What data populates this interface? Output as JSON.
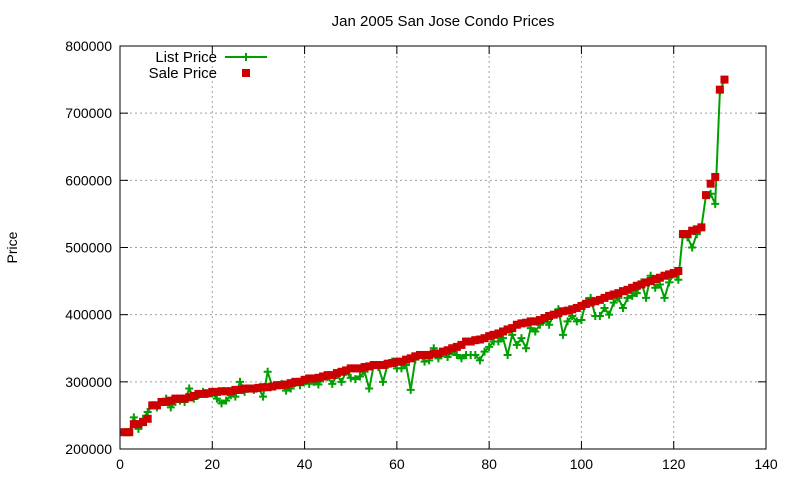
{
  "chart_data": {
    "type": "line",
    "title": "Jan 2005 San Jose Condo Prices",
    "xlabel": "",
    "ylabel": "Price",
    "xlim": [
      0,
      140
    ],
    "ylim": [
      200000,
      800000
    ],
    "x_ticks": [
      0,
      20,
      40,
      60,
      80,
      100,
      120,
      140
    ],
    "y_ticks": [
      200000,
      300000,
      400000,
      500000,
      600000,
      700000,
      800000
    ],
    "grid": true,
    "legend_position": "top-left",
    "series": [
      {
        "name": "List Price",
        "style": "line-plus",
        "color": "#00a000",
        "points": [
          [
            1,
            225000
          ],
          [
            2,
            225000
          ],
          [
            3,
            247000
          ],
          [
            4,
            230000
          ],
          [
            5,
            245000
          ],
          [
            6,
            255000
          ],
          [
            7,
            265000
          ],
          [
            8,
            262000
          ],
          [
            9,
            270000
          ],
          [
            10,
            275000
          ],
          [
            11,
            262000
          ],
          [
            12,
            270000
          ],
          [
            13,
            272000
          ],
          [
            14,
            270000
          ],
          [
            15,
            290000
          ],
          [
            16,
            275000
          ],
          [
            17,
            280000
          ],
          [
            18,
            285000
          ],
          [
            19,
            282000
          ],
          [
            20,
            283000
          ],
          [
            21,
            275000
          ],
          [
            22,
            268000
          ],
          [
            23,
            272000
          ],
          [
            24,
            280000
          ],
          [
            25,
            278000
          ],
          [
            26,
            300000
          ],
          [
            27,
            285000
          ],
          [
            28,
            290000
          ],
          [
            29,
            288000
          ],
          [
            30,
            291000
          ],
          [
            31,
            278000
          ],
          [
            32,
            315000
          ],
          [
            33,
            293000
          ],
          [
            34,
            295000
          ],
          [
            35,
            297000
          ],
          [
            36,
            287000
          ],
          [
            37,
            290000
          ],
          [
            38,
            298000
          ],
          [
            39,
            295000
          ],
          [
            40,
            300000
          ],
          [
            41,
            297000
          ],
          [
            42,
            300000
          ],
          [
            43,
            296000
          ],
          [
            44,
            305000
          ],
          [
            45,
            307000
          ],
          [
            46,
            297000
          ],
          [
            47,
            310000
          ],
          [
            48,
            300000
          ],
          [
            49,
            315000
          ],
          [
            50,
            306000
          ],
          [
            51,
            304000
          ],
          [
            52,
            308000
          ],
          [
            53,
            315000
          ],
          [
            54,
            290000
          ],
          [
            55,
            325000
          ],
          [
            56,
            322000
          ],
          [
            57,
            300000
          ],
          [
            58,
            325000
          ],
          [
            59,
            330000
          ],
          [
            60,
            320000
          ],
          [
            61,
            320000
          ],
          [
            62,
            325000
          ],
          [
            63,
            288000
          ],
          [
            64,
            333000
          ],
          [
            65,
            340000
          ],
          [
            66,
            330000
          ],
          [
            67,
            332000
          ],
          [
            68,
            350000
          ],
          [
            69,
            335000
          ],
          [
            70,
            343000
          ],
          [
            71,
            337000
          ],
          [
            72,
            345000
          ],
          [
            73,
            340000
          ],
          [
            74,
            335000
          ],
          [
            75,
            340000
          ],
          [
            76,
            340000
          ],
          [
            77,
            340000
          ],
          [
            78,
            332000
          ],
          [
            79,
            345000
          ],
          [
            80,
            352000
          ],
          [
            81,
            360000
          ],
          [
            82,
            360000
          ],
          [
            83,
            365000
          ],
          [
            84,
            340000
          ],
          [
            85,
            370000
          ],
          [
            86,
            355000
          ],
          [
            87,
            365000
          ],
          [
            88,
            350000
          ],
          [
            89,
            380000
          ],
          [
            90,
            375000
          ],
          [
            91,
            385000
          ],
          [
            92,
            392000
          ],
          [
            93,
            385000
          ],
          [
            94,
            400000
          ],
          [
            95,
            408000
          ],
          [
            96,
            370000
          ],
          [
            97,
            390000
          ],
          [
            98,
            398000
          ],
          [
            99,
            390000
          ],
          [
            100,
            392000
          ],
          [
            101,
            420000
          ],
          [
            102,
            425000
          ],
          [
            103,
            398000
          ],
          [
            104,
            398000
          ],
          [
            105,
            410000
          ],
          [
            106,
            400000
          ],
          [
            107,
            418000
          ],
          [
            108,
            425000
          ],
          [
            109,
            410000
          ],
          [
            110,
            425000
          ],
          [
            111,
            428000
          ],
          [
            112,
            432000
          ],
          [
            113,
            448000
          ],
          [
            114,
            425000
          ],
          [
            115,
            458000
          ],
          [
            116,
            440000
          ],
          [
            117,
            445000
          ],
          [
            118,
            425000
          ],
          [
            119,
            448000
          ],
          [
            120,
            460000
          ],
          [
            121,
            452000
          ],
          [
            122,
            520000
          ],
          [
            123,
            515000
          ],
          [
            124,
            500000
          ],
          [
            125,
            520000
          ],
          [
            126,
            530000
          ],
          [
            127,
            578000
          ],
          [
            128,
            580000
          ],
          [
            129,
            565000
          ],
          [
            130,
            733000
          ],
          [
            131,
            750000
          ]
        ]
      },
      {
        "name": "Sale Price",
        "style": "square",
        "color": "#cc0000",
        "points": [
          [
            1,
            225000
          ],
          [
            2,
            225000
          ],
          [
            3,
            237000
          ],
          [
            4,
            237000
          ],
          [
            5,
            240000
          ],
          [
            6,
            245000
          ],
          [
            7,
            265000
          ],
          [
            8,
            265000
          ],
          [
            9,
            270000
          ],
          [
            10,
            270000
          ],
          [
            11,
            272000
          ],
          [
            12,
            275000
          ],
          [
            13,
            275000
          ],
          [
            14,
            275000
          ],
          [
            15,
            277000
          ],
          [
            16,
            279000
          ],
          [
            17,
            282000
          ],
          [
            18,
            282000
          ],
          [
            19,
            283000
          ],
          [
            20,
            285000
          ],
          [
            21,
            285000
          ],
          [
            22,
            286000
          ],
          [
            23,
            286000
          ],
          [
            24,
            286000
          ],
          [
            25,
            288000
          ],
          [
            26,
            288000
          ],
          [
            27,
            290000
          ],
          [
            28,
            290000
          ],
          [
            29,
            290000
          ],
          [
            30,
            291000
          ],
          [
            31,
            292000
          ],
          [
            32,
            292000
          ],
          [
            33,
            293000
          ],
          [
            34,
            295000
          ],
          [
            35,
            295000
          ],
          [
            36,
            296000
          ],
          [
            37,
            298000
          ],
          [
            38,
            300000
          ],
          [
            39,
            300000
          ],
          [
            40,
            303000
          ],
          [
            41,
            305000
          ],
          [
            42,
            305000
          ],
          [
            43,
            306000
          ],
          [
            44,
            308000
          ],
          [
            45,
            310000
          ],
          [
            46,
            310000
          ],
          [
            47,
            313000
          ],
          [
            48,
            315000
          ],
          [
            49,
            317000
          ],
          [
            50,
            320000
          ],
          [
            51,
            320000
          ],
          [
            52,
            320000
          ],
          [
            53,
            322000
          ],
          [
            54,
            323000
          ],
          [
            55,
            325000
          ],
          [
            56,
            325000
          ],
          [
            57,
            325000
          ],
          [
            58,
            327000
          ],
          [
            59,
            328000
          ],
          [
            60,
            330000
          ],
          [
            61,
            330000
          ],
          [
            62,
            333000
          ],
          [
            63,
            335000
          ],
          [
            64,
            338000
          ],
          [
            65,
            340000
          ],
          [
            66,
            340000
          ],
          [
            67,
            340000
          ],
          [
            68,
            342000
          ],
          [
            69,
            342000
          ],
          [
            70,
            345000
          ],
          [
            71,
            347000
          ],
          [
            72,
            350000
          ],
          [
            73,
            352000
          ],
          [
            74,
            355000
          ],
          [
            75,
            360000
          ],
          [
            76,
            360000
          ],
          [
            77,
            362000
          ],
          [
            78,
            363000
          ],
          [
            79,
            365000
          ],
          [
            80,
            368000
          ],
          [
            81,
            370000
          ],
          [
            82,
            372000
          ],
          [
            83,
            375000
          ],
          [
            84,
            378000
          ],
          [
            85,
            380000
          ],
          [
            86,
            385000
          ],
          [
            87,
            387000
          ],
          [
            88,
            388000
          ],
          [
            89,
            390000
          ],
          [
            90,
            390000
          ],
          [
            91,
            392000
          ],
          [
            92,
            395000
          ],
          [
            93,
            398000
          ],
          [
            94,
            400000
          ],
          [
            95,
            402000
          ],
          [
            96,
            405000
          ],
          [
            97,
            406000
          ],
          [
            98,
            408000
          ],
          [
            99,
            410000
          ],
          [
            100,
            413000
          ],
          [
            101,
            416000
          ],
          [
            102,
            418000
          ],
          [
            103,
            420000
          ],
          [
            104,
            422000
          ],
          [
            105,
            425000
          ],
          [
            106,
            428000
          ],
          [
            107,
            430000
          ],
          [
            108,
            432000
          ],
          [
            109,
            435000
          ],
          [
            110,
            437000
          ],
          [
            111,
            440000
          ],
          [
            112,
            443000
          ],
          [
            113,
            445000
          ],
          [
            114,
            448000
          ],
          [
            115,
            450000
          ],
          [
            116,
            453000
          ],
          [
            117,
            455000
          ],
          [
            118,
            458000
          ],
          [
            119,
            460000
          ],
          [
            120,
            462000
          ],
          [
            121,
            465000
          ],
          [
            122,
            520000
          ],
          [
            123,
            520000
          ],
          [
            124,
            525000
          ],
          [
            125,
            527000
          ],
          [
            126,
            530000
          ],
          [
            127,
            578000
          ],
          [
            128,
            595000
          ],
          [
            129,
            605000
          ],
          [
            130,
            735000
          ],
          [
            131,
            750000
          ]
        ]
      }
    ]
  }
}
